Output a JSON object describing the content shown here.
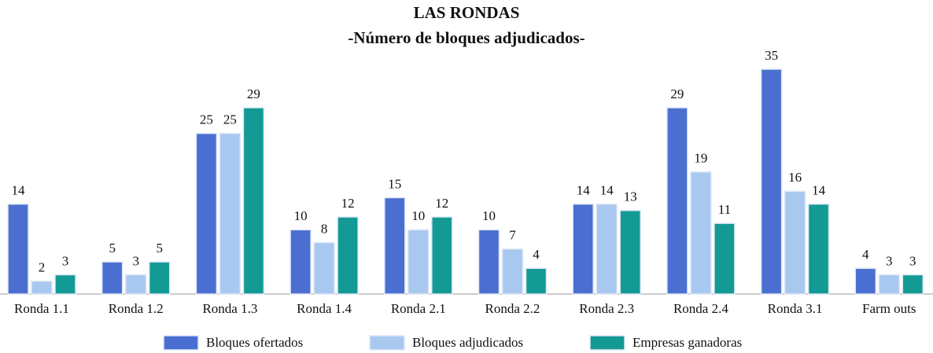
{
  "chart_data": {
    "type": "bar",
    "title": "LAS RONDAS",
    "subtitle": "-Número de bloques adjudicados-",
    "categories": [
      "Ronda 1.1",
      "Ronda 1.2",
      "Ronda 1.3",
      "Ronda 1.4",
      "Ronda 2.1",
      "Ronda 2.2",
      "Ronda 2.3",
      "Ronda 2.4",
      "Ronda 3.1",
      "Farm outs"
    ],
    "series": [
      {
        "name": "Bloques ofertados",
        "color": "#4a6fd0",
        "values": [
          14,
          5,
          25,
          10,
          15,
          10,
          14,
          29,
          35,
          4
        ]
      },
      {
        "name": "Bloques adjudicados",
        "color": "#a9c8f0",
        "values": [
          2,
          3,
          25,
          8,
          10,
          7,
          14,
          19,
          16,
          3
        ]
      },
      {
        "name": "Empresas ganadoras",
        "color": "#139a94",
        "values": [
          3,
          5,
          29,
          12,
          12,
          4,
          13,
          11,
          14,
          3
        ]
      }
    ],
    "legend": "bottom"
  }
}
